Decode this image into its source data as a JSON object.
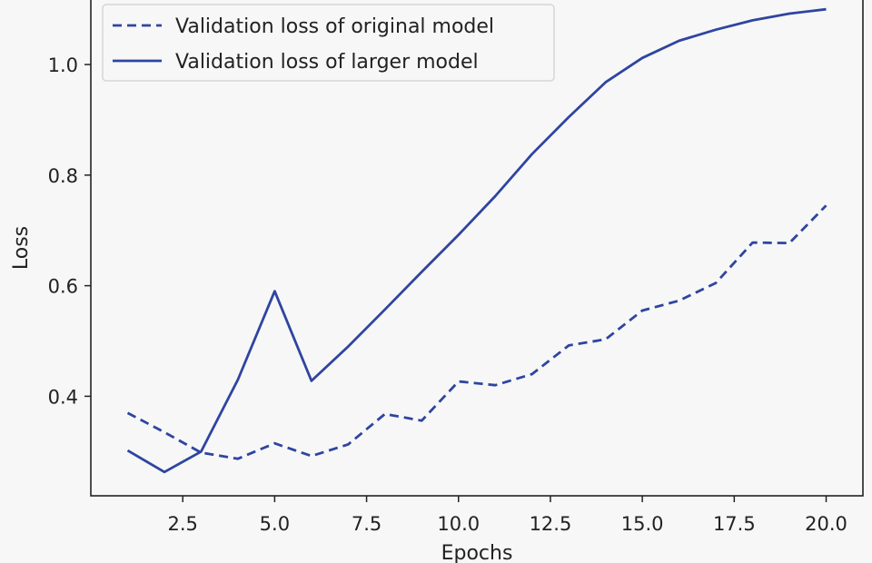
{
  "chart_data": {
    "type": "line",
    "title": "",
    "xlabel": "Epochs",
    "ylabel": "Loss",
    "xlim": [
      0.0,
      21.0
    ],
    "ylim": [
      0.22,
      1.12
    ],
    "xticks": [
      2.5,
      5.0,
      7.5,
      10.0,
      12.5,
      15.0,
      17.5,
      20.0
    ],
    "xtick_labels": [
      "2.5",
      "5.0",
      "7.5",
      "10.0",
      "12.5",
      "15.0",
      "17.5",
      "20.0"
    ],
    "yticks": [
      0.4,
      0.6,
      0.8,
      1.0
    ],
    "ytick_labels": [
      "0.4",
      "0.6",
      "0.8",
      "1.0"
    ],
    "grid": false,
    "legend_position": "top-left",
    "x": [
      1,
      2,
      3,
      4,
      5,
      6,
      7,
      8,
      9,
      10,
      11,
      12,
      13,
      14,
      15,
      16,
      17,
      18,
      19,
      20
    ],
    "series": [
      {
        "name": "Validation loss of original model",
        "style": "dashed",
        "color": "#2e45a0",
        "values": [
          0.37,
          0.335,
          0.298,
          0.287,
          0.315,
          0.292,
          0.313,
          0.368,
          0.356,
          0.427,
          0.42,
          0.44,
          0.492,
          0.503,
          0.555,
          0.573,
          0.605,
          0.678,
          0.677,
          0.745
        ]
      },
      {
        "name": "Validation loss of larger model",
        "style": "solid",
        "color": "#2e45a0",
        "values": [
          0.302,
          0.263,
          0.3,
          0.43,
          0.59,
          0.428,
          0.49,
          0.557,
          0.625,
          0.692,
          0.762,
          0.838,
          0.905,
          0.968,
          1.012,
          1.043,
          1.063,
          1.08,
          1.092,
          1.1
        ]
      }
    ]
  }
}
